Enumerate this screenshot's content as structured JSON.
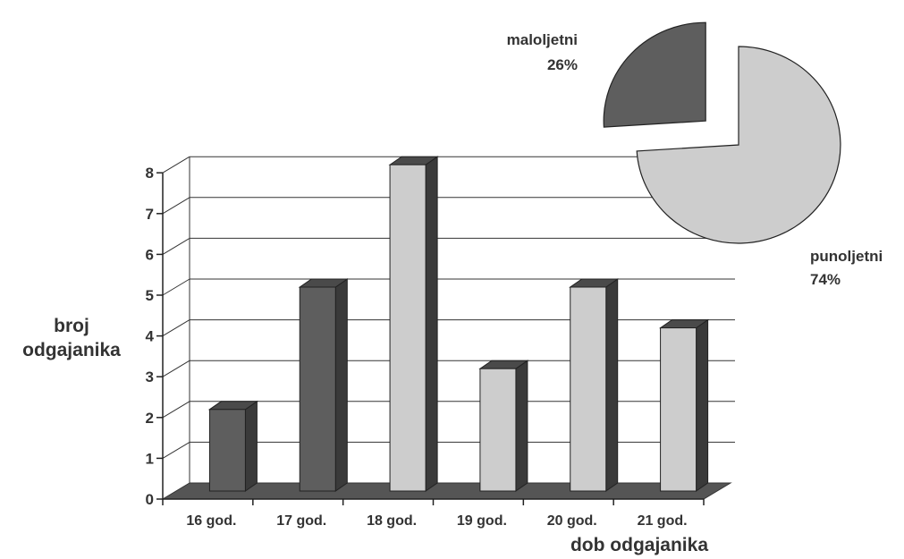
{
  "chart_data": [
    {
      "type": "bar",
      "categories": [
        "16 god.",
        "17 god.",
        "18 god.",
        "19 god.",
        "20 god.",
        "21 god."
      ],
      "values": [
        2,
        5,
        8,
        3,
        5,
        4
      ],
      "bar_group": [
        "maloljetni",
        "maloljetni",
        "punoljetni",
        "punoljetni",
        "punoljetni",
        "punoljetni"
      ],
      "ylabel": "broj odgajanika",
      "ylabel_lines": [
        "broj",
        "odgajanika"
      ],
      "xlabel": "dob odgajanika",
      "ylim": [
        0,
        8
      ],
      "yticks": [
        "0",
        "1",
        "2",
        "3",
        "4",
        "5",
        "6",
        "7",
        "8"
      ],
      "grid": true,
      "style": "3d-columns"
    },
    {
      "type": "pie",
      "slices": [
        {
          "label": "maloljetni",
          "pct_label": "26%",
          "value": 26,
          "exploded": true
        },
        {
          "label": "punoljetni",
          "pct_label": "74%",
          "value": 74,
          "exploded": false
        }
      ]
    }
  ],
  "colors": {
    "maloljetni": "#5e5e5e",
    "punoljetni": "#cdcdcd",
    "floor": "#555555",
    "axis": "#222222",
    "grid": "#333333",
    "text": "#333333"
  }
}
